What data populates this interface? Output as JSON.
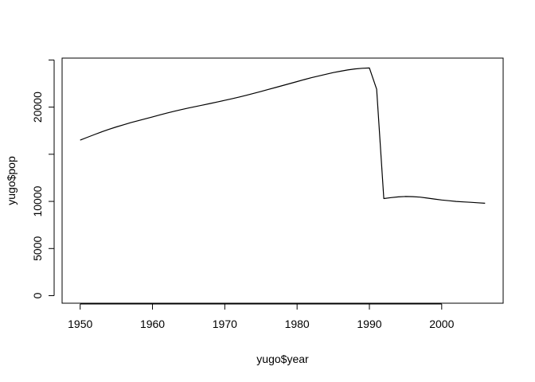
{
  "chart_data": {
    "type": "line",
    "title": "",
    "xlabel": "yugo$year",
    "ylabel": "yugo$pop",
    "xlim": [
      1947.5,
      2008.5
    ],
    "ylim": [
      -800,
      25200
    ],
    "x_ticks": [
      1950,
      1960,
      1970,
      1980,
      1990,
      2000
    ],
    "y_ticks": [
      0,
      5000,
      10000,
      20000
    ],
    "y_unlabeled_ticks": [
      15000,
      25000
    ],
    "series": [
      {
        "x": [
          1950,
          1951,
          1952,
          1953,
          1954,
          1955,
          1956,
          1957,
          1958,
          1959,
          1960,
          1961,
          1962,
          1963,
          1964,
          1965,
          1966,
          1967,
          1968,
          1969,
          1970,
          1971,
          1972,
          1973,
          1974,
          1975,
          1976,
          1977,
          1978,
          1979,
          1980,
          1981,
          1982,
          1983,
          1984,
          1985,
          1986,
          1987,
          1988,
          1989,
          1990,
          1991,
          1992,
          1993,
          1994,
          1995,
          1996,
          1997,
          1998,
          1999,
          2000,
          2001,
          2002,
          2003,
          2004,
          2005,
          2006
        ],
        "y": [
          16500,
          16800,
          17100,
          17380,
          17650,
          17900,
          18130,
          18350,
          18560,
          18760,
          18960,
          19170,
          19370,
          19560,
          19740,
          19910,
          20070,
          20230,
          20390,
          20550,
          20720,
          20890,
          21070,
          21260,
          21460,
          21660,
          21870,
          22080,
          22290,
          22500,
          22710,
          22920,
          23120,
          23310,
          23490,
          23660,
          23810,
          23940,
          24050,
          24120,
          24150,
          21900,
          10300,
          10400,
          10480,
          10520,
          10500,
          10450,
          10350,
          10250,
          10150,
          10070,
          10000,
          9950,
          9900,
          9850,
          9800
        ]
      }
    ],
    "grid": false,
    "legend": "none"
  }
}
